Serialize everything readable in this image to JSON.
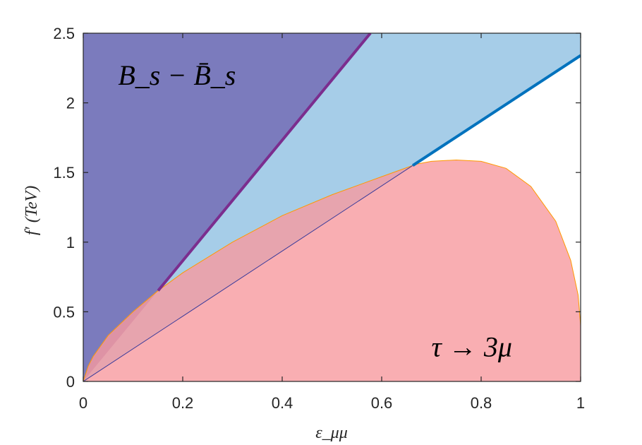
{
  "chart_data": {
    "type": "area",
    "xlabel": "ε_μμ",
    "ylabel": "f′ (TeV)",
    "xlim": [
      0,
      1
    ],
    "ylim": [
      0,
      2.5
    ],
    "xticks": [
      0,
      0.2,
      0.4,
      0.6,
      0.8,
      1
    ],
    "yticks": [
      0,
      0.5,
      1,
      1.5,
      2,
      2.5
    ],
    "xtick_labels": [
      "0",
      "0.2",
      "0.4",
      "0.6",
      "0.8",
      "1"
    ],
    "ytick_labels": [
      "0",
      "0.5",
      "1",
      "1.5",
      "2",
      "2.5"
    ],
    "grid": false,
    "regions": [
      {
        "name": "B_s − B̄_s",
        "fill": "#7b7bbd",
        "boundary_slope_TeV": 4.33,
        "boundary_line_color": "#7b2d8e"
      },
      {
        "name": "light-blue band",
        "fill": "#a6cde8",
        "boundary_slope_TeV": 2.34,
        "boundary_line_color": "#0072bd"
      },
      {
        "name": "τ → 3μ",
        "fill": "#f79a9f",
        "edge_color": "#ff9900",
        "curve": {
          "x": [
            0,
            0.01,
            0.02,
            0.05,
            0.1,
            0.15,
            0.2,
            0.3,
            0.4,
            0.5,
            0.6,
            0.67,
            0.7,
            0.75,
            0.8,
            0.85,
            0.9,
            0.95,
            0.98,
            0.995,
            1
          ],
          "y": [
            0,
            0.11,
            0.18,
            0.33,
            0.5,
            0.65,
            0.78,
            1.0,
            1.19,
            1.34,
            1.47,
            1.56,
            1.58,
            1.59,
            1.58,
            1.53,
            1.4,
            1.15,
            0.87,
            0.62,
            0.4
          ]
        }
      }
    ],
    "annotations": [
      {
        "text": "B_s − B̄_s",
        "x": 0.07,
        "y": 2.2
      },
      {
        "text": "τ → 3μ",
        "x": 0.7,
        "y": 0.25
      }
    ]
  }
}
